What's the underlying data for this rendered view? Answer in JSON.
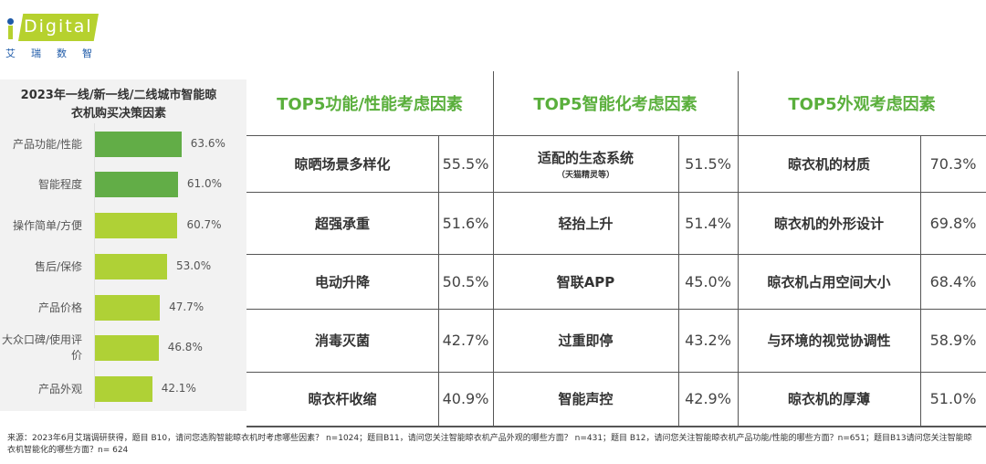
{
  "logo": {
    "text": "Digital",
    "cn": "艾瑞数智"
  },
  "left_chart": {
    "title": "2023年一线/新一线/二线城市智能晾衣机购买决策因素",
    "chart_data": {
      "type": "bar",
      "title": "2023年一线/新一线/二线城市智能晾衣机购买决策因素",
      "categories": [
        "产品功能/性能",
        "智能程度",
        "操作简单/方便",
        "售后/保修",
        "产品价格",
        "大众口碑/使用评价",
        "产品外观"
      ],
      "labels": [
        "63.6%",
        "61.0%",
        "60.7%",
        "53.0%",
        "47.7%",
        "46.8%",
        "42.1%"
      ],
      "values": [
        63.6,
        61.0,
        60.7,
        53.0,
        47.7,
        46.8,
        42.1
      ],
      "colors": [
        "#62ad47",
        "#62ad47",
        "#afd136",
        "#afd136",
        "#afd136",
        "#afd136",
        "#afd136"
      ],
      "orientation": "horizontal"
    }
  },
  "table": {
    "sections": [
      {
        "title": "TOP5功能/性能考虑因素",
        "rows": [
          {
            "name": "晾晒场景多样化",
            "pct": "55.5%"
          },
          {
            "name": "超强承重",
            "pct": "51.6%"
          },
          {
            "name": "电动升降",
            "pct": "50.5%"
          },
          {
            "name": "消毒灭菌",
            "pct": "42.7%"
          },
          {
            "name": "晾衣杆收缩",
            "pct": "40.9%"
          }
        ]
      },
      {
        "title": "TOP5智能化考虑因素",
        "rows": [
          {
            "name": "适配的生态系统",
            "sub": "（天猫精灵等）",
            "pct": "51.5%"
          },
          {
            "name": "轻抬上升",
            "pct": "51.4%"
          },
          {
            "name": "智联APP",
            "pct": "45.0%"
          },
          {
            "name": "过重即停",
            "pct": "43.2%"
          },
          {
            "name": "智能声控",
            "pct": "42.9%"
          }
        ]
      },
      {
        "title": "TOP5外观考虑因素",
        "rows": [
          {
            "name": "晾衣机的材质",
            "pct": "70.3%"
          },
          {
            "name": "晾衣机的外形设计",
            "pct": "69.8%"
          },
          {
            "name": "晾衣机占用空间大小",
            "pct": "68.4%"
          },
          {
            "name": "与环境的视觉协调性",
            "pct": "58.9%"
          },
          {
            "name": "晾衣机的厚薄",
            "pct": "51.0%"
          }
        ]
      }
    ]
  },
  "source": "来源：2023年6月艾瑞调研获得，题目 B10，请问您选购智能晾衣机时考虑哪些因素？  n=1024；题目B11，请问您关注智能晾衣机产品外观的哪些方面？ n=431；题目 B12，请问您关注智能晾衣机产品功能/性能的哪些方面？n=651；题目B13请问您关注智能晾衣机智能化的哪些方面？n= 624"
}
